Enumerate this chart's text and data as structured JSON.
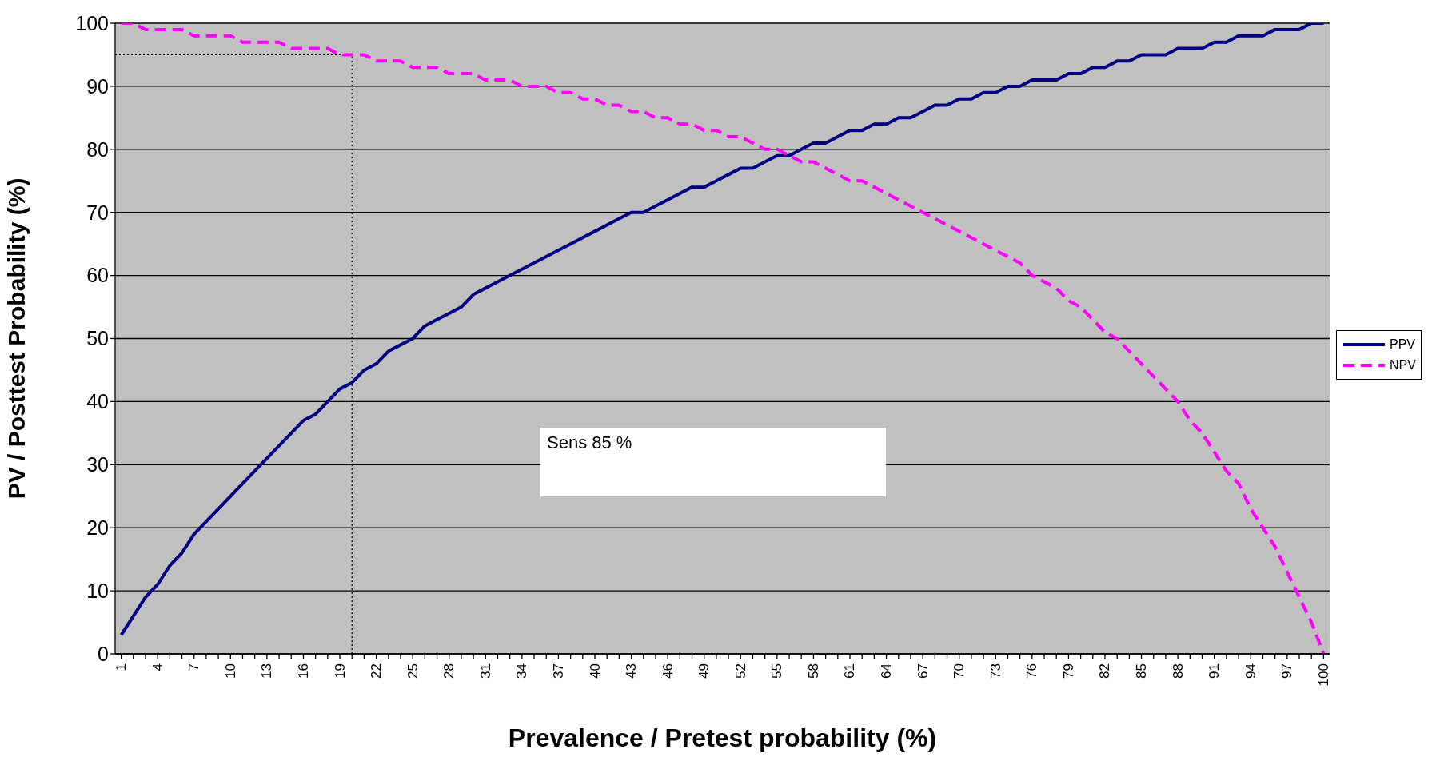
{
  "chart_data": {
    "type": "line",
    "xlabel": "Prevalence / Pretest probability (%)",
    "ylabel": "PV / Posttest Probability (%)",
    "x": [
      1,
      2,
      3,
      4,
      5,
      6,
      7,
      8,
      9,
      10,
      11,
      12,
      13,
      14,
      15,
      16,
      17,
      18,
      19,
      20,
      21,
      22,
      23,
      24,
      25,
      26,
      27,
      28,
      29,
      30,
      31,
      32,
      33,
      34,
      35,
      36,
      37,
      38,
      39,
      40,
      41,
      42,
      43,
      44,
      45,
      46,
      47,
      48,
      49,
      50,
      51,
      52,
      53,
      54,
      55,
      56,
      57,
      58,
      59,
      60,
      61,
      62,
      63,
      64,
      65,
      66,
      67,
      68,
      69,
      70,
      71,
      72,
      73,
      74,
      75,
      76,
      77,
      78,
      79,
      80,
      81,
      82,
      83,
      84,
      85,
      86,
      87,
      88,
      89,
      90,
      91,
      92,
      93,
      94,
      95,
      96,
      97,
      98,
      99,
      100
    ],
    "xlim": [
      0.5,
      100.5
    ],
    "xticks": [
      1,
      {
        "value": 2,
        "label": null
      },
      {
        "value": 3,
        "label": null
      },
      4,
      {
        "value": 5,
        "label": null
      },
      {
        "value": 6,
        "label": null
      },
      7,
      {
        "value": 8,
        "label": null
      },
      {
        "value": 9,
        "label": null
      },
      10,
      {
        "value": 11,
        "label": null
      },
      {
        "value": 12,
        "label": null
      },
      13,
      {
        "value": 14,
        "label": null
      },
      {
        "value": 15,
        "label": null
      },
      16,
      {
        "value": 17,
        "label": null
      },
      {
        "value": 18,
        "label": null
      },
      19,
      {
        "value": 20,
        "label": null
      },
      {
        "value": 21,
        "label": null
      },
      22,
      {
        "value": 23,
        "label": null
      },
      {
        "value": 24,
        "label": null
      },
      25,
      {
        "value": 26,
        "label": null
      },
      {
        "value": 27,
        "label": null
      },
      28,
      {
        "value": 29,
        "label": null
      },
      {
        "value": 30,
        "label": null
      },
      31,
      {
        "value": 32,
        "label": null
      },
      {
        "value": 33,
        "label": null
      },
      34,
      {
        "value": 35,
        "label": null
      },
      {
        "value": 36,
        "label": null
      },
      37,
      {
        "value": 38,
        "label": null
      },
      {
        "value": 39,
        "label": null
      },
      40,
      {
        "value": 41,
        "label": null
      },
      {
        "value": 42,
        "label": null
      },
      43,
      {
        "value": 44,
        "label": null
      },
      {
        "value": 45,
        "label": null
      },
      46,
      {
        "value": 47,
        "label": null
      },
      {
        "value": 48,
        "label": null
      },
      49,
      {
        "value": 50,
        "label": null
      },
      {
        "value": 51,
        "label": null
      },
      52,
      {
        "value": 53,
        "label": null
      },
      {
        "value": 54,
        "label": null
      },
      55,
      {
        "value": 56,
        "label": null
      },
      {
        "value": 57,
        "label": null
      },
      58,
      {
        "value": 59,
        "label": null
      },
      {
        "value": 60,
        "label": null
      },
      61,
      {
        "value": 62,
        "label": null
      },
      {
        "value": 63,
        "label": null
      },
      64,
      {
        "value": 65,
        "label": null
      },
      {
        "value": 66,
        "label": null
      },
      67,
      {
        "value": 68,
        "label": null
      },
      {
        "value": 69,
        "label": null
      },
      70,
      {
        "value": 71,
        "label": null
      },
      {
        "value": 72,
        "label": null
      },
      73,
      {
        "value": 74,
        "label": null
      },
      {
        "value": 75,
        "label": null
      },
      76,
      {
        "value": 77,
        "label": null
      },
      {
        "value": 78,
        "label": null
      },
      79,
      {
        "value": 80,
        "label": null
      },
      {
        "value": 81,
        "label": null
      },
      82,
      {
        "value": 83,
        "label": null
      },
      {
        "value": 84,
        "label": null
      },
      85,
      {
        "value": 86,
        "label": null
      },
      {
        "value": 87,
        "label": null
      },
      88,
      {
        "value": 89,
        "label": null
      },
      {
        "value": 90,
        "label": null
      },
      91,
      {
        "value": 92,
        "label": null
      },
      {
        "value": 93,
        "label": null
      },
      94,
      {
        "value": 95,
        "label": null
      },
      {
        "value": 96,
        "label": null
      },
      97,
      {
        "value": 98,
        "label": null
      },
      {
        "value": 99,
        "label": null
      },
      100
    ],
    "ylim": [
      0,
      100
    ],
    "yticks": [
      0,
      10,
      20,
      30,
      40,
      50,
      60,
      70,
      80,
      90,
      100
    ],
    "grid": "y",
    "legend": "right",
    "marker": "none",
    "series": [
      {
        "name": "PPV",
        "color": "#000080",
        "line_style": "solid",
        "values": [
          3,
          6,
          9,
          11,
          14,
          16,
          19,
          21,
          23,
          25,
          27,
          29,
          31,
          33,
          35,
          37,
          38,
          40,
          42,
          43,
          45,
          46,
          48,
          49,
          50,
          52,
          53,
          54,
          55,
          57,
          58,
          59,
          60,
          61,
          62,
          63,
          64,
          65,
          66,
          67,
          68,
          69,
          70,
          70,
          71,
          72,
          73,
          74,
          74,
          75,
          76,
          77,
          77,
          78,
          79,
          79,
          80,
          81,
          81,
          82,
          83,
          83,
          84,
          84,
          85,
          85,
          86,
          87,
          87,
          88,
          88,
          89,
          89,
          90,
          90,
          91,
          91,
          91,
          92,
          92,
          93,
          93,
          94,
          94,
          95,
          95,
          95,
          96,
          96,
          96,
          97,
          97,
          98,
          98,
          98,
          99,
          99,
          99,
          100,
          100
        ]
      },
      {
        "name": "NPV",
        "color": "#ff00ff",
        "line_style": "dashed",
        "values": [
          100,
          100,
          99,
          99,
          99,
          99,
          98,
          98,
          98,
          98,
          97,
          97,
          97,
          97,
          96,
          96,
          96,
          96,
          95,
          95,
          95,
          94,
          94,
          94,
          93,
          93,
          93,
          92,
          92,
          92,
          91,
          91,
          91,
          90,
          90,
          90,
          89,
          89,
          88,
          88,
          87,
          87,
          86,
          86,
          85,
          85,
          84,
          84,
          83,
          83,
          82,
          82,
          81,
          80,
          80,
          79,
          78,
          78,
          77,
          76,
          75,
          75,
          74,
          73,
          72,
          71,
          70,
          69,
          68,
          67,
          66,
          65,
          64,
          63,
          62,
          60,
          59,
          58,
          56,
          55,
          53,
          51,
          50,
          48,
          46,
          44,
          42,
          40,
          37,
          35,
          32,
          29,
          27,
          23,
          20,
          17,
          13,
          9,
          5,
          0
        ]
      }
    ],
    "ref_lines": [
      {
        "axis": "x",
        "value": 20,
        "color": "#000000",
        "line_style": "dotted"
      },
      {
        "axis": "y",
        "value": 95,
        "color": "#000000",
        "line_style": "dotted"
      }
    ],
    "annotations": [
      "Sens 85 %"
    ]
  }
}
